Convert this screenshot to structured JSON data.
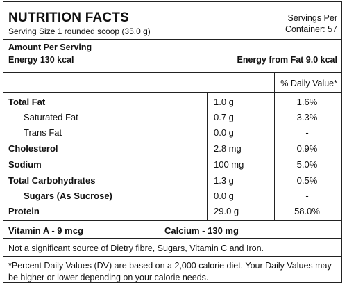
{
  "header": {
    "title": "NUTRITION FACTS",
    "serving_size": "Serving Size 1 rounded scoop (35.0 g)",
    "servings_per_line1": "Servings Per",
    "servings_per_line2": "Container: 57"
  },
  "amount": {
    "heading": "Amount Per Serving",
    "energy": "Energy 130 kcal",
    "energy_from_fat": "Energy from Fat 9.0 kcal"
  },
  "daily_value_header": "% Daily Value*",
  "nutrients": [
    {
      "name": "Total Fat",
      "amount": "1.0 g",
      "dv": "1.6%"
    },
    {
      "name": "Saturated Fat",
      "amount": "0.7 g",
      "dv": "3.3%"
    },
    {
      "name": "Trans Fat",
      "amount": "0.0 g",
      "dv": "-"
    },
    {
      "name": "Cholesterol",
      "amount": "2.8 mg",
      "dv": "0.9%"
    },
    {
      "name": "Sodium",
      "amount": "100 mg",
      "dv": "5.0%"
    },
    {
      "name": "Total Carbohydrates",
      "amount": "1.3 g",
      "dv": "0.5%"
    },
    {
      "name": "Sugars (As Sucrose)",
      "amount": "0.0 g",
      "dv": "-"
    },
    {
      "name": "Protein",
      "amount": "29.0 g",
      "dv": "58.0%"
    }
  ],
  "vitamins": {
    "vitamin_a": "Vitamin A - 9 mcg",
    "calcium": "Calcium - 130 mg"
  },
  "notes": {
    "significance": "Not a significant source of Dietry fibre, Sugars, Vitamin C and Iron.",
    "footnote": "*Percent Daily Values (DV) are based on a 2,000 calorie diet. Your Daily Values may be higher or lower depending on your calorie needs."
  }
}
